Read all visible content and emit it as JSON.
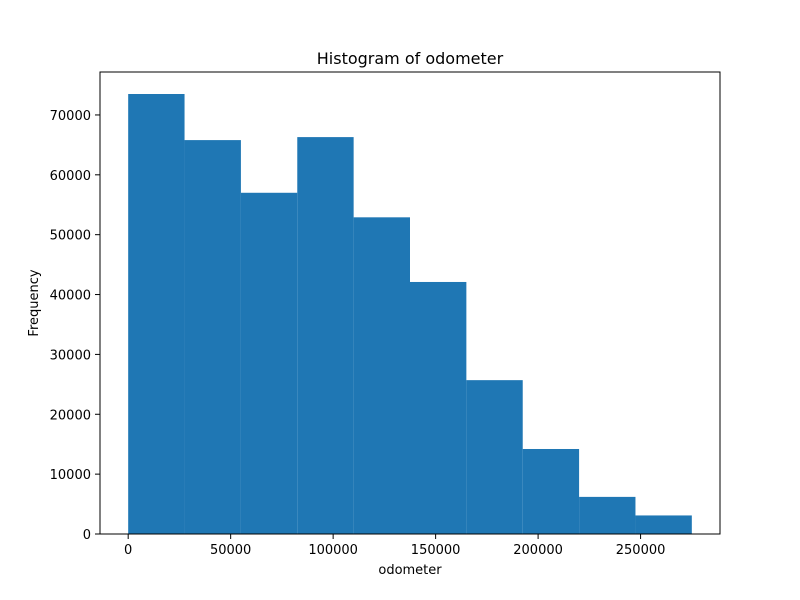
{
  "chart_data": {
    "type": "bar",
    "title": "Histogram of odometer",
    "xlabel": "odometer",
    "ylabel": "Frequency",
    "bin_edges": [
      0,
      27500,
      55000,
      82500,
      110000,
      137500,
      165000,
      192500,
      220000,
      247500,
      275000
    ],
    "values": [
      73500,
      65800,
      57000,
      66300,
      52900,
      42100,
      25700,
      14200,
      6200,
      3100
    ],
    "xlim": [
      -13750,
      288750
    ],
    "ylim": [
      0,
      77175
    ],
    "x_ticks": [
      {
        "value": 0,
        "label": "0"
      },
      {
        "value": 50000,
        "label": "50000"
      },
      {
        "value": 100000,
        "label": "100000"
      },
      {
        "value": 150000,
        "label": "150000"
      },
      {
        "value": 200000,
        "label": "200000"
      },
      {
        "value": 250000,
        "label": "250000"
      }
    ],
    "y_ticks": [
      {
        "value": 0,
        "label": "0"
      },
      {
        "value": 10000,
        "label": "10000"
      },
      {
        "value": 20000,
        "label": "20000"
      },
      {
        "value": 30000,
        "label": "30000"
      },
      {
        "value": 40000,
        "label": "40000"
      },
      {
        "value": 50000,
        "label": "50000"
      },
      {
        "value": 60000,
        "label": "60000"
      },
      {
        "value": 70000,
        "label": "70000"
      }
    ],
    "grid": false,
    "bar_color": "#1f77b4"
  }
}
